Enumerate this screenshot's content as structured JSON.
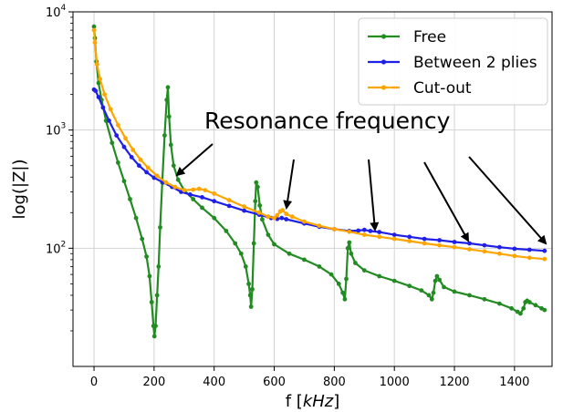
{
  "chart_data": {
    "type": "line",
    "title": "",
    "xlabel": "f [kHz]",
    "xlabel_parts": {
      "prefix": "f [",
      "unit": "kHz",
      "suffix": "]"
    },
    "ylabel": "log(|Z|)",
    "xlim": [
      -70,
      1525
    ],
    "ylim": [
      10,
      10000
    ],
    "yscale": "log",
    "grid": true,
    "legend_position": "top-right",
    "x_ticks": [
      0,
      200,
      400,
      600,
      800,
      1000,
      1200,
      1400
    ],
    "x_tick_labels": [
      "0",
      "200",
      "400",
      "600",
      "800",
      "1000",
      "1200",
      "1400"
    ],
    "y_ticks": [
      100,
      1000,
      10000
    ],
    "y_tick_labels": [
      {
        "base": "10",
        "exp": "2"
      },
      {
        "base": "10",
        "exp": "3"
      },
      {
        "base": "10",
        "exp": "4"
      }
    ],
    "series": [
      {
        "name": "Free",
        "color": "#228B22",
        "points": [
          [
            0,
            7500
          ],
          [
            3,
            6000
          ],
          [
            8,
            3800
          ],
          [
            15,
            2500
          ],
          [
            25,
            1800
          ],
          [
            40,
            1200
          ],
          [
            60,
            780
          ],
          [
            80,
            530
          ],
          [
            100,
            370
          ],
          [
            120,
            260
          ],
          [
            140,
            180
          ],
          [
            160,
            120
          ],
          [
            175,
            85
          ],
          [
            185,
            58
          ],
          [
            192,
            35
          ],
          [
            198,
            22
          ],
          [
            201,
            18
          ],
          [
            205,
            22
          ],
          [
            210,
            40
          ],
          [
            215,
            70
          ],
          [
            220,
            150
          ],
          [
            227,
            360
          ],
          [
            235,
            900
          ],
          [
            242,
            1800
          ],
          [
            246,
            2300
          ],
          [
            250,
            1300
          ],
          [
            256,
            750
          ],
          [
            265,
            500
          ],
          [
            280,
            380
          ],
          [
            300,
            310
          ],
          [
            330,
            260
          ],
          [
            360,
            220
          ],
          [
            400,
            180
          ],
          [
            440,
            140
          ],
          [
            470,
            110
          ],
          [
            490,
            90
          ],
          [
            505,
            70
          ],
          [
            515,
            50
          ],
          [
            520,
            40
          ],
          [
            523,
            32
          ],
          [
            527,
            45
          ],
          [
            532,
            110
          ],
          [
            537,
            250
          ],
          [
            540,
            360
          ],
          [
            545,
            330
          ],
          [
            552,
            230
          ],
          [
            560,
            175
          ],
          [
            580,
            130
          ],
          [
            600,
            108
          ],
          [
            650,
            90
          ],
          [
            700,
            80
          ],
          [
            750,
            70
          ],
          [
            790,
            60
          ],
          [
            815,
            50
          ],
          [
            828,
            42
          ],
          [
            835,
            37
          ],
          [
            840,
            55
          ],
          [
            845,
            100
          ],
          [
            850,
            112
          ],
          [
            856,
            90
          ],
          [
            870,
            75
          ],
          [
            900,
            65
          ],
          [
            950,
            58
          ],
          [
            1000,
            53
          ],
          [
            1050,
            48
          ],
          [
            1090,
            44
          ],
          [
            1115,
            40
          ],
          [
            1125,
            37
          ],
          [
            1130,
            42
          ],
          [
            1136,
            53
          ],
          [
            1142,
            58
          ],
          [
            1150,
            54
          ],
          [
            1165,
            47
          ],
          [
            1200,
            43
          ],
          [
            1250,
            40
          ],
          [
            1300,
            37
          ],
          [
            1350,
            34
          ],
          [
            1390,
            31
          ],
          [
            1410,
            29
          ],
          [
            1420,
            28
          ],
          [
            1430,
            31
          ],
          [
            1436,
            35
          ],
          [
            1442,
            36
          ],
          [
            1450,
            35
          ],
          [
            1470,
            33
          ],
          [
            1490,
            31
          ],
          [
            1500,
            30
          ]
        ]
      },
      {
        "name": "Between 2 plies",
        "color": "#1f1fe6",
        "points": [
          [
            0,
            2200
          ],
          [
            5,
            2150
          ],
          [
            15,
            1900
          ],
          [
            30,
            1550
          ],
          [
            50,
            1200
          ],
          [
            75,
            900
          ],
          [
            100,
            720
          ],
          [
            125,
            590
          ],
          [
            150,
            500
          ],
          [
            175,
            440
          ],
          [
            200,
            395
          ],
          [
            230,
            360
          ],
          [
            260,
            330
          ],
          [
            290,
            300
          ],
          [
            320,
            285
          ],
          [
            360,
            270
          ],
          [
            400,
            250
          ],
          [
            450,
            228
          ],
          [
            500,
            208
          ],
          [
            550,
            192
          ],
          [
            590,
            180
          ],
          [
            610,
            177
          ],
          [
            625,
            180
          ],
          [
            640,
            176
          ],
          [
            700,
            162
          ],
          [
            750,
            152
          ],
          [
            800,
            145
          ],
          [
            850,
            140
          ],
          [
            880,
            141
          ],
          [
            900,
            143
          ],
          [
            920,
            140
          ],
          [
            950,
            137
          ],
          [
            1000,
            130
          ],
          [
            1050,
            125
          ],
          [
            1100,
            120
          ],
          [
            1150,
            117
          ],
          [
            1200,
            113
          ],
          [
            1250,
            110
          ],
          [
            1300,
            106
          ],
          [
            1350,
            102
          ],
          [
            1400,
            99
          ],
          [
            1450,
            97
          ],
          [
            1500,
            95
          ]
        ]
      },
      {
        "name": "Cut-out",
        "color": "#FFA500",
        "points": [
          [
            0,
            7000
          ],
          [
            3,
            5500
          ],
          [
            10,
            3600
          ],
          [
            20,
            2700
          ],
          [
            35,
            2000
          ],
          [
            55,
            1500
          ],
          [
            80,
            1100
          ],
          [
            105,
            850
          ],
          [
            130,
            680
          ],
          [
            155,
            560
          ],
          [
            180,
            480
          ],
          [
            210,
            410
          ],
          [
            240,
            360
          ],
          [
            270,
            330
          ],
          [
            300,
            310
          ],
          [
            330,
            313
          ],
          [
            350,
            318
          ],
          [
            370,
            310
          ],
          [
            400,
            290
          ],
          [
            450,
            255
          ],
          [
            500,
            225
          ],
          [
            550,
            200
          ],
          [
            580,
            185
          ],
          [
            600,
            180
          ],
          [
            610,
            190
          ],
          [
            620,
            205
          ],
          [
            628,
            210
          ],
          [
            640,
            195
          ],
          [
            660,
            185
          ],
          [
            700,
            168
          ],
          [
            750,
            155
          ],
          [
            800,
            145
          ],
          [
            850,
            138
          ],
          [
            900,
            130
          ],
          [
            950,
            125
          ],
          [
            1000,
            120
          ],
          [
            1050,
            115
          ],
          [
            1100,
            110
          ],
          [
            1150,
            106
          ],
          [
            1200,
            102
          ],
          [
            1250,
            98
          ],
          [
            1300,
            94
          ],
          [
            1350,
            90
          ],
          [
            1400,
            86
          ],
          [
            1450,
            83
          ],
          [
            1500,
            81
          ]
        ]
      }
    ],
    "annotations": [
      {
        "text": "Resonance frequency"
      }
    ]
  }
}
